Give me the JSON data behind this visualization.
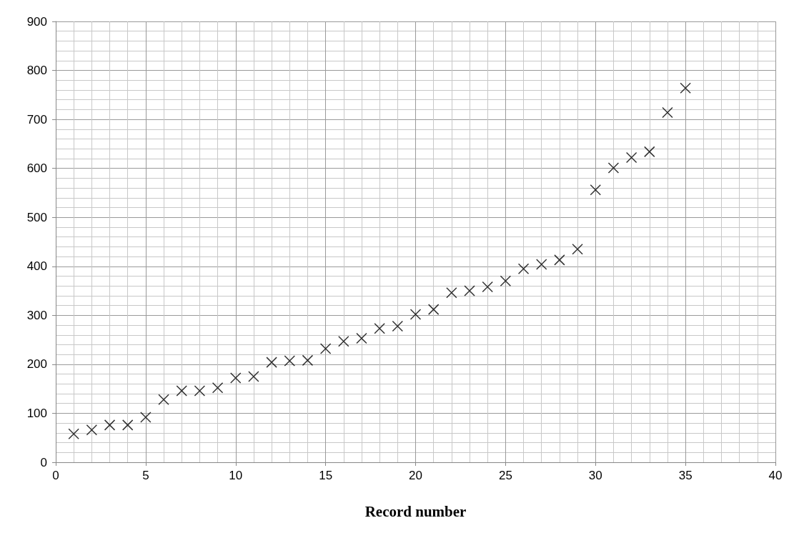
{
  "chart_data": {
    "type": "scatter",
    "xlabel": "Record number",
    "x": [
      1,
      2,
      3,
      4,
      5,
      6,
      7,
      8,
      9,
      10,
      11,
      12,
      13,
      14,
      15,
      16,
      17,
      18,
      19,
      20,
      21,
      22,
      23,
      24,
      25,
      26,
      27,
      28,
      29,
      30,
      31,
      32,
      33,
      34,
      35
    ],
    "series": [
      {
        "color": "#000000",
        "values": [
          58,
          66,
          76,
          76,
          92,
          128,
          146,
          146,
          152,
          172,
          175,
          204,
          207,
          208,
          232,
          247,
          253,
          273,
          278,
          302,
          312,
          346,
          350,
          358,
          370,
          395,
          404,
          413,
          435,
          556,
          601,
          622,
          634,
          714,
          764
        ]
      }
    ],
    "xlim": [
      0,
      40
    ],
    "xticks": [
      0,
      5,
      10,
      15,
      20,
      25,
      30,
      35,
      40
    ],
    "ylim": [
      0,
      900
    ],
    "yticks": [
      0,
      100,
      200,
      300,
      400,
      500,
      600,
      700,
      800,
      900
    ],
    "grid": true,
    "marker": "cross"
  }
}
